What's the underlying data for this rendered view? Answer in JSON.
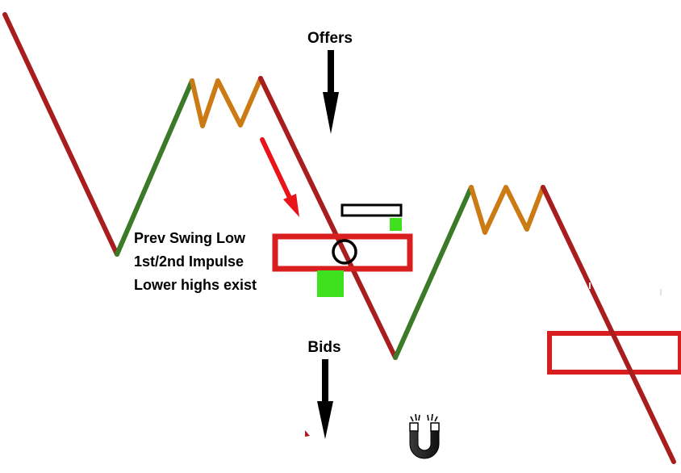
{
  "labels": {
    "offers": "Offers",
    "bids": "Bids",
    "annotation_line1": "Prev Swing Low",
    "annotation_line2": "1st/2nd Impulse",
    "annotation_line3": "Lower highs exist"
  },
  "icons": {
    "magnet": "magnet-icon"
  },
  "colors": {
    "down_leg": "#A81E1E",
    "up_leg": "#3A7A28",
    "consolidation": "#CC7A14",
    "zone": "#D81E1E",
    "highlight": "#3FE01E",
    "pointer_arrow": "#E8141A",
    "arrow": "#000000"
  }
}
